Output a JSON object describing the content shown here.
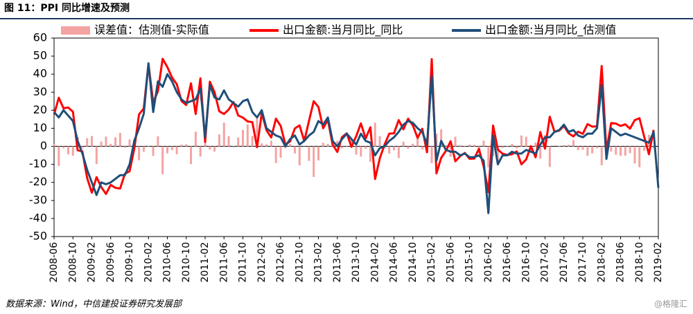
{
  "header": {
    "title": "图 11：PPI 同比增速及预测"
  },
  "chart_data": {
    "type": "line",
    "categories": [
      "2008-06",
      null,
      null,
      null,
      "2008-10",
      null,
      null,
      null,
      "2009-02",
      null,
      null,
      null,
      "2009-06",
      null,
      null,
      null,
      "2009-10",
      null,
      null,
      null,
      "2010-02",
      null,
      null,
      null,
      "2010-06",
      null,
      null,
      null,
      "2010-10",
      null,
      null,
      null,
      "2011-02",
      null,
      null,
      null,
      "2011-06",
      null,
      null,
      null,
      "2011-10",
      null,
      null,
      null,
      "2012-02",
      null,
      null,
      null,
      "2012-06",
      null,
      null,
      null,
      "2012-10",
      null,
      null,
      null,
      "2013-02",
      null,
      null,
      null,
      "2013-06",
      null,
      null,
      null,
      "2013-10",
      null,
      null,
      null,
      "2014-02",
      null,
      null,
      null,
      "2014-06",
      null,
      null,
      null,
      "2014-10",
      null,
      null,
      null,
      "2015-02",
      null,
      null,
      null,
      "2015-06",
      null,
      null,
      null,
      "2015-10",
      null,
      null,
      null,
      "2016-02",
      null,
      null,
      null,
      "2016-06",
      null,
      null,
      null,
      "2016-10",
      null,
      null,
      null,
      "2017-02",
      null,
      null,
      null,
      "2017-06",
      null,
      null,
      null,
      "2017-10",
      null,
      null,
      null,
      "2018-02",
      null,
      null,
      null,
      "2018-06",
      null,
      null,
      null,
      "2018-10",
      null,
      null,
      null,
      "2019-02"
    ],
    "series": [
      {
        "name": "误差值：估测值-实际值",
        "type": "bar",
        "color": "#f4a3a3",
        "values": [
          1.4,
          -10.9,
          -1.1,
          -4.5,
          -5.2,
          5.2,
          -1.2,
          4.5,
          5.7,
          -9.9,
          2.6,
          5.4,
          1.4,
          5,
          7.4,
          -0.8,
          3.8,
          4.2,
          -7.7,
          -3,
          0.3,
          -5.3,
          5.5,
          -15.5,
          -3.9,
          -2.1,
          -4.4,
          0.9,
          1.1,
          -9.9,
          8.1,
          -5.7,
          2.6,
          -1.8,
          -2.9,
          6.6,
          13.1,
          5.6,
          -0.5,
          4.9,
          9.1,
          12.2,
          5.6,
          16.5,
          1.6,
          1.1,
          3.1,
          -9.3,
          -6.3,
          -1,
          1.3,
          -3.9,
          -10.6,
          0.1,
          -8.1,
          -17,
          -7.8,
          2,
          1.3,
          2,
          3.1,
          -1.1,
          -0.2,
          4.3,
          -4.6,
          -5.7,
          -1.3,
          -8.6,
          13.1,
          5.6,
          -0.9,
          -4,
          -2.2,
          -6.5,
          2.6,
          -1.3,
          1.4,
          5.3,
          -1.7,
          4.3,
          -9.3,
          7,
          9.4,
          0.5,
          -5.8,
          5.3,
          0.5,
          -0.3,
          0.9,
          0.8,
          -3.6,
          3.2,
          -11.6,
          -5.5,
          -8.2,
          -0.9,
          -0.2,
          1.4,
          -1.2,
          6,
          5.3,
          -3.1,
          2.1,
          -6.9,
          6.3,
          -11.4,
          0,
          0.3,
          0.7,
          0.8,
          3.5,
          -2.1,
          -1.9,
          -5.3,
          -3.9,
          -1.1,
          -10.5,
          -4.3,
          -2.9,
          -4.6,
          -5.3,
          -5.2,
          -3.8,
          -9.5,
          -11.6,
          -2.4,
          6.4,
          -1.1,
          null
        ]
      },
      {
        "name": "出口金额:当月同比_同比",
        "type": "line",
        "color": "#ff0000",
        "values": [
          17.6,
          26.9,
          21.1,
          21.5,
          19.2,
          -2.2,
          -2.8,
          -17.5,
          -25.7,
          -17.1,
          -22.6,
          -26.4,
          -21.4,
          -23,
          -23.4,
          -15.2,
          -13.8,
          -1.2,
          17.7,
          21,
          45.7,
          24.3,
          30.5,
          48.5,
          43.9,
          38.1,
          34.4,
          25.1,
          22.9,
          34.9,
          17.9,
          37.7,
          2.4,
          35.8,
          29.9,
          19.4,
          17.9,
          20.4,
          24.5,
          17.1,
          15.9,
          13.8,
          13.4,
          -0.5,
          18.4,
          8.9,
          4.9,
          15.3,
          11.3,
          1,
          2.7,
          9.9,
          11.6,
          2.9,
          14.1,
          25,
          21.8,
          10,
          14.7,
          1,
          -3.1,
          5.1,
          7.2,
          -0.3,
          5.6,
          12.7,
          4.3,
          10.6,
          -18.1,
          -6.6,
          0.9,
          7,
          7.2,
          14.5,
          9.4,
          15.3,
          11.6,
          4.7,
          9.7,
          -3.3,
          48.3,
          -15,
          -6.4,
          -2.5,
          2.8,
          -8.3,
          -5.5,
          -3.7,
          -6.9,
          -6.8,
          -1.4,
          -11.2,
          -25.4,
          11.5,
          -1.8,
          -4.1,
          -4.8,
          -4.4,
          -2.8,
          -10,
          -7.3,
          0.1,
          -6.1,
          7.9,
          -1.3,
          16.4,
          8,
          8.7,
          11.3,
          7.2,
          5.5,
          8.1,
          6.9,
          12.3,
          10.9,
          11.1,
          44.5,
          -2.7,
          12.9,
          12.6,
          11.3,
          12.2,
          9.8,
          14.5,
          15.6,
          5.4,
          -4.4,
          9.1,
          null
        ]
      },
      {
        "name": "出口金额:当月同比_估测值",
        "type": "line",
        "color": "#1f4e79",
        "values": [
          19,
          16,
          20,
          17,
          14,
          3,
          -4,
          -13,
          -20,
          -27,
          -20,
          -21,
          -20,
          -18,
          -16,
          -16,
          -10,
          3,
          10,
          18,
          46,
          19,
          36,
          33,
          40,
          36,
          30,
          26,
          24,
          25,
          26,
          32,
          5,
          34,
          27,
          26,
          31,
          26,
          24,
          22,
          25,
          26,
          19,
          16,
          20,
          10,
          8,
          6,
          5,
          0,
          4,
          6,
          1,
          3,
          6,
          8,
          14,
          12,
          16,
          3,
          0,
          4,
          7,
          4,
          1,
          7,
          3,
          2,
          -5,
          -1,
          0,
          3,
          5,
          8,
          12,
          14,
          13,
          10,
          8,
          1,
          39,
          -8,
          3,
          -2,
          -3,
          -3,
          -5,
          -4,
          -6,
          -6,
          -5,
          -8,
          -37,
          6,
          -10,
          -5,
          -5,
          -3,
          -4,
          -4,
          -2,
          -3,
          -4,
          1,
          5,
          5,
          8,
          9,
          12,
          8,
          9,
          6,
          5,
          7,
          7,
          10,
          34,
          -7,
          10,
          8,
          6,
          7,
          6,
          5,
          4,
          3,
          2,
          8,
          -23
        ]
      }
    ],
    "ylim": [
      -50,
      60
    ],
    "yticks": [
      -50,
      -40,
      -30,
      -20,
      -10,
      0,
      10,
      20,
      30,
      40,
      50,
      60
    ],
    "grid": false
  },
  "footer": {
    "source": "数据来源：Wind，中信建投证券研究发展部",
    "watermark": "@格隆汇"
  }
}
